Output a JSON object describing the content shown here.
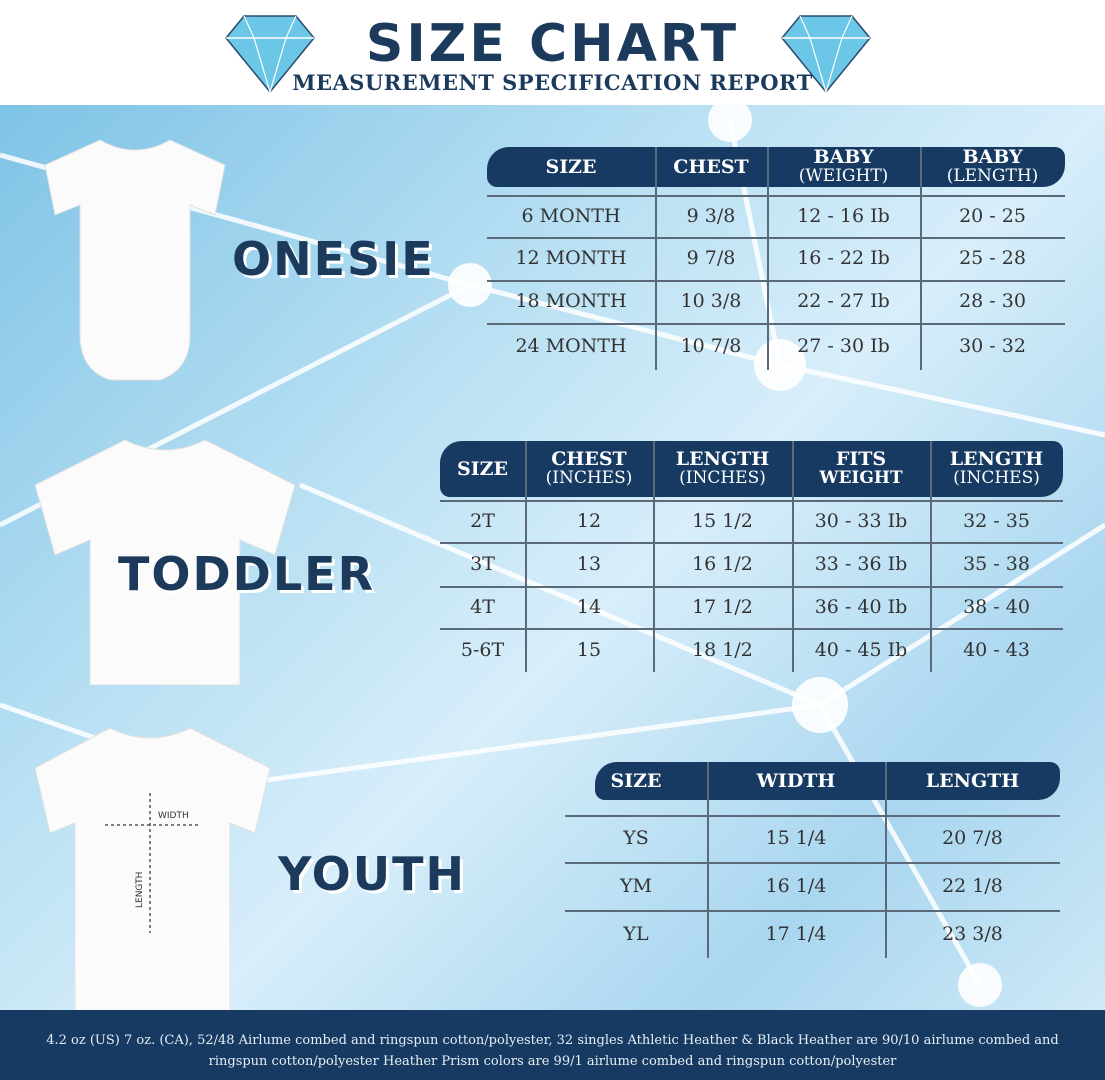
{
  "header": {
    "title": "SIZE CHART",
    "subtitle": "MEASUREMENT SPECIFICATION REPORT"
  },
  "colors": {
    "navy": "#163a61",
    "light_blue": "#b9e0f3",
    "diamond": "#6cc6e8"
  },
  "onesie": {
    "label": "ONESIE",
    "headers": [
      {
        "main": "SIZE",
        "sub": ""
      },
      {
        "main": "CHEST",
        "sub": ""
      },
      {
        "main": "BABY",
        "sub": "(WEIGHT)"
      },
      {
        "main": "BABY",
        "sub": "(LENGTH)"
      }
    ],
    "rows": [
      [
        "6 MONTH",
        "9 3/8",
        "12 - 16 Ib",
        "20 - 25"
      ],
      [
        "12 MONTH",
        "9 7/8",
        "16 - 22 Ib",
        "25 - 28"
      ],
      [
        "18  MONTH",
        "10 3/8",
        "22 - 27 Ib",
        "28 - 30"
      ],
      [
        "24 MONTH",
        "10 7/8",
        "27 - 30 Ib",
        "30 - 32"
      ]
    ]
  },
  "toddler": {
    "label": "TODDLER",
    "headers": [
      {
        "main": "SIZE",
        "sub": ""
      },
      {
        "main": "CHEST",
        "sub": "(INCHES)"
      },
      {
        "main": "LENGTH",
        "sub": "(INCHES)"
      },
      {
        "main": "FITS",
        "sub": "WEIGHT"
      },
      {
        "main": "LENGTH",
        "sub": "(INCHES)"
      }
    ],
    "rows": [
      [
        "2T",
        "12",
        "15 1/2",
        "30 - 33 Ib",
        "32 - 35"
      ],
      [
        "3T",
        "13",
        "16 1/2",
        "33 - 36 Ib",
        "35 - 38"
      ],
      [
        "4T",
        "14",
        "17 1/2",
        "36 - 40 Ib",
        "38 - 40"
      ],
      [
        "5-6T",
        "15",
        "18 1/2",
        "40 - 45 Ib",
        "40 - 43"
      ]
    ]
  },
  "youth": {
    "label": "YOUTH",
    "width_label": "WIDTH",
    "length_label": "LENGTH",
    "headers": [
      {
        "main": "SIZE",
        "sub": ""
      },
      {
        "main": "WIDTH",
        "sub": ""
      },
      {
        "main": "LENGTH",
        "sub": ""
      }
    ],
    "rows": [
      [
        "YS",
        "15 1/4",
        "20 7/8"
      ],
      [
        "YM",
        "16 1/4",
        "22 1/8"
      ],
      [
        "YL",
        "17 1/4",
        "23 3/8"
      ]
    ]
  },
  "footer": {
    "text": "4.2 oz (US) 7 oz. (CA), 52/48 Airlume combed and ringspun cotton/polyester, 32 singles Athletic Heather & Black Heather are 90/10 airlume combed and ringspun cotton/polyester Heather Prism colors are 99/1 airlume combed and ringspun cotton/polyester"
  }
}
